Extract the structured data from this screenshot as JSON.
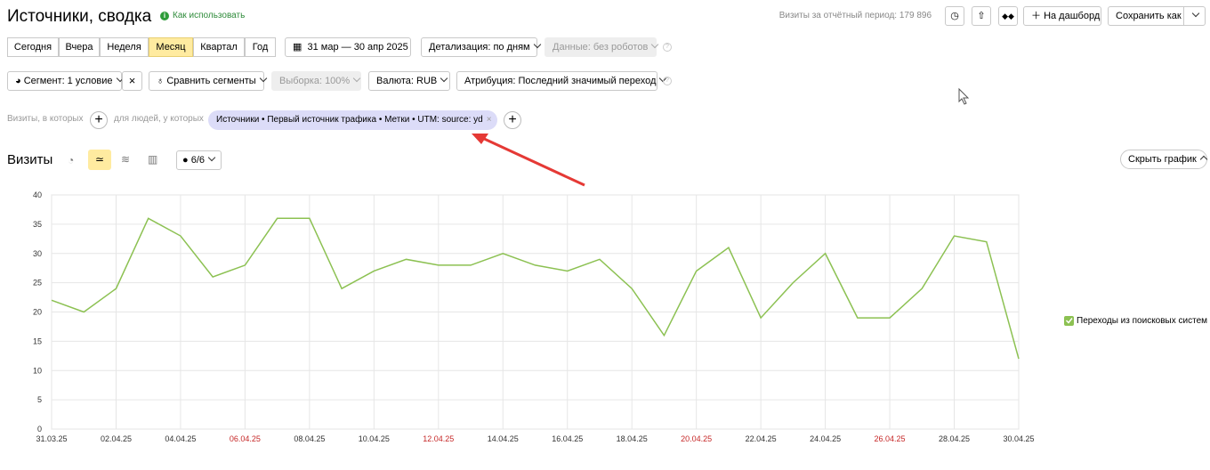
{
  "header": {
    "title": "Источники, сводка",
    "help_link": "Как использовать",
    "visits_summary": "Визиты за отчётный период: 179 896",
    "dashboard_button": "На дашборд",
    "save_button": "Сохранить как"
  },
  "period_tabs": {
    "items": [
      "Сегодня",
      "Вчера",
      "Неделя",
      "Месяц",
      "Квартал",
      "Год"
    ],
    "active": 3
  },
  "date_range": "31 мар — 30 апр 2025",
  "detail_button": "Детализация: по дням",
  "data_button": "Данные: без роботов",
  "segment_row": {
    "segment": "Сегмент: 1 условие",
    "compare": "Сравнить сегменты",
    "sample": "Выборка: 100%",
    "currency": "Валюта: RUB",
    "attribution": "Атрибуция: Последний значимый переход"
  },
  "filter_row": {
    "visits_label": "Визиты, в которых",
    "people_label": "для людей, у которых",
    "chip": "Источники • Первый источник трафика • Метки • UTM: source: yd"
  },
  "section": {
    "title": "Визиты",
    "counter": "6/6",
    "hide_chart": "Скрыть график"
  },
  "chart_data": {
    "type": "line",
    "categories": [
      "31.03.25",
      null,
      "02.04.25",
      null,
      "04.04.25",
      null,
      "06.04.25",
      null,
      "08.04.25",
      null,
      "10.04.25",
      null,
      "12.04.25",
      null,
      "14.04.25",
      null,
      "16.04.25",
      null,
      "18.04.25",
      null,
      "20.04.25",
      null,
      "22.04.25",
      null,
      "24.04.25",
      null,
      "26.04.25",
      null,
      "28.04.25",
      null,
      "30.04.25"
    ],
    "series": [
      {
        "name": "Переходы из поисковых систем",
        "color": "#8cc152",
        "values": [
          22,
          20,
          24,
          36,
          33,
          26,
          28,
          36,
          36,
          24,
          27,
          29,
          28,
          28,
          30,
          28,
          27,
          29,
          24,
          16,
          27,
          31,
          19,
          25,
          30,
          19,
          19,
          24,
          33,
          32,
          12
        ]
      }
    ],
    "ylim": [
      0,
      40
    ],
    "yticks": [
      0,
      5,
      10,
      15,
      20,
      25,
      30,
      35,
      40
    ],
    "grid": true,
    "legend": "right"
  }
}
